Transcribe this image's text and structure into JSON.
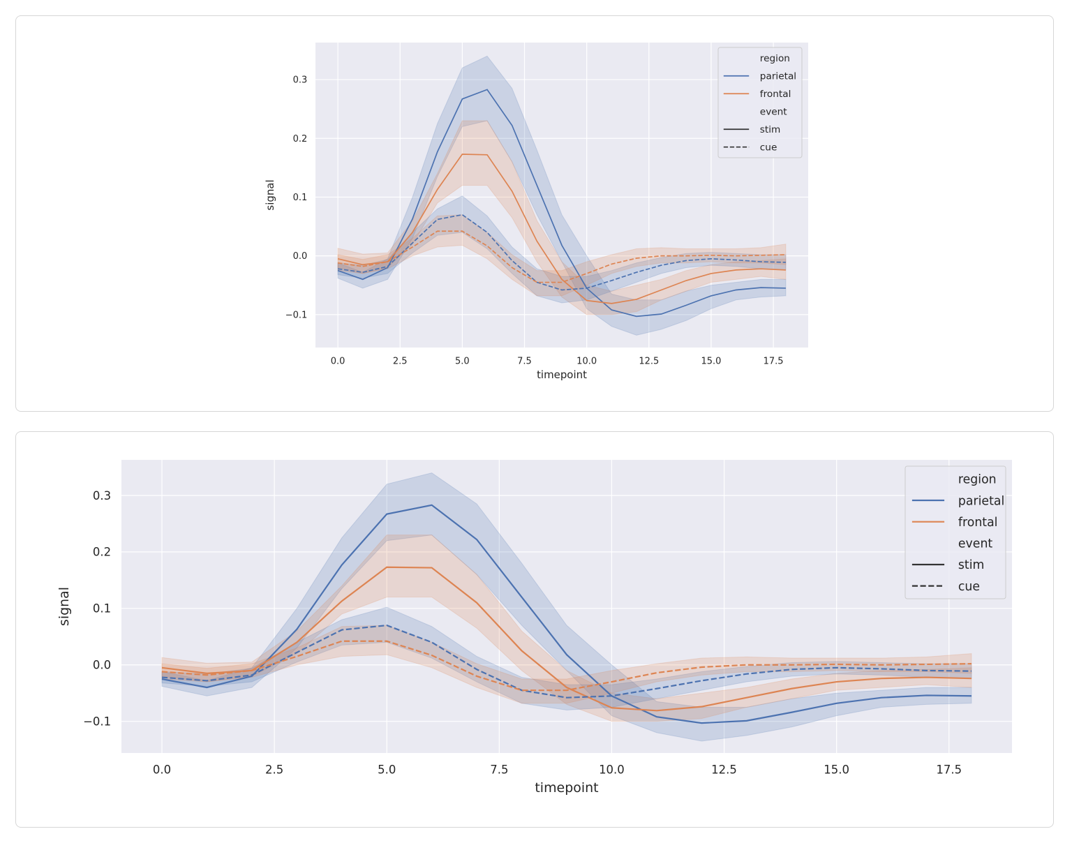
{
  "chart_data": [
    {
      "type": "line",
      "xlabel": "timepoint",
      "ylabel": "signal",
      "x": [
        0,
        1,
        2,
        3,
        4,
        5,
        6,
        7,
        8,
        9,
        10,
        11,
        12,
        13,
        14,
        15,
        16,
        17,
        18
      ],
      "xlim": [
        -0.9,
        18.9
      ],
      "ylim": [
        -0.156,
        0.363
      ],
      "xticks": [
        "0.0",
        "2.5",
        "5.0",
        "7.5",
        "10.0",
        "12.5",
        "15.0",
        "17.5"
      ],
      "yticks": [
        "−0.1",
        "0.0",
        "0.1",
        "0.2",
        "0.3"
      ],
      "grid": true,
      "legend_placement": "upper right",
      "legend": {
        "title_hue": "region",
        "hue": [
          "parietal",
          "frontal"
        ],
        "title_style": "event",
        "style": [
          "stim",
          "cue"
        ]
      },
      "colors": {
        "parietal": "#4c72b0",
        "frontal": "#dd8452",
        "background": "#eaeaf2"
      },
      "series": [
        {
          "region": "parietal",
          "event": "stim",
          "values": [
            -0.025,
            -0.04,
            -0.02,
            0.063,
            0.177,
            0.267,
            0.283,
            0.222,
            0.12,
            0.018,
            -0.055,
            -0.092,
            -0.103,
            -0.099,
            -0.084,
            -0.068,
            -0.058,
            -0.054,
            -0.055
          ],
          "ci_low": [
            -0.038,
            -0.055,
            -0.04,
            0.03,
            0.135,
            0.22,
            0.23,
            0.16,
            0.07,
            -0.01,
            -0.09,
            -0.12,
            -0.135,
            -0.125,
            -0.11,
            -0.09,
            -0.075,
            -0.07,
            -0.068
          ],
          "ci_high": [
            -0.012,
            -0.028,
            -0.005,
            0.1,
            0.225,
            0.32,
            0.34,
            0.285,
            0.18,
            0.07,
            0.0,
            -0.065,
            -0.075,
            -0.075,
            -0.06,
            -0.05,
            -0.045,
            -0.04,
            -0.04
          ]
        },
        {
          "region": "frontal",
          "event": "stim",
          "values": [
            -0.005,
            -0.015,
            -0.01,
            0.04,
            0.113,
            0.173,
            0.172,
            0.11,
            0.025,
            -0.04,
            -0.076,
            -0.081,
            -0.074,
            -0.058,
            -0.042,
            -0.03,
            -0.024,
            -0.022,
            -0.024
          ],
          "ci_low": [
            -0.02,
            -0.03,
            -0.02,
            0.02,
            0.09,
            0.12,
            0.12,
            0.065,
            -0.01,
            -0.07,
            -0.1,
            -0.1,
            -0.095,
            -0.075,
            -0.06,
            -0.045,
            -0.04,
            -0.035,
            -0.04
          ],
          "ci_high": [
            0.013,
            0.003,
            0.005,
            0.06,
            0.14,
            0.23,
            0.23,
            0.16,
            0.06,
            -0.01,
            -0.05,
            -0.06,
            -0.05,
            -0.04,
            -0.025,
            -0.015,
            -0.01,
            -0.008,
            -0.005
          ]
        },
        {
          "region": "parietal",
          "event": "cue",
          "values": [
            -0.022,
            -0.028,
            -0.018,
            0.022,
            0.062,
            0.07,
            0.04,
            -0.008,
            -0.045,
            -0.058,
            -0.055,
            -0.042,
            -0.028,
            -0.016,
            -0.008,
            -0.005,
            -0.007,
            -0.01,
            -0.011
          ],
          "ci_low": [
            -0.032,
            -0.038,
            -0.03,
            0.005,
            0.035,
            0.04,
            0.012,
            -0.03,
            -0.068,
            -0.08,
            -0.075,
            -0.06,
            -0.045,
            -0.03,
            -0.02,
            -0.016,
            -0.018,
            -0.022,
            -0.024
          ],
          "ci_high": [
            -0.012,
            -0.016,
            -0.006,
            0.04,
            0.08,
            0.102,
            0.068,
            0.015,
            -0.022,
            -0.035,
            -0.035,
            -0.025,
            -0.012,
            -0.003,
            0.004,
            0.006,
            0.004,
            0.002,
            0.002
          ]
        },
        {
          "region": "frontal",
          "event": "cue",
          "values": [
            -0.012,
            -0.018,
            -0.01,
            0.015,
            0.042,
            0.042,
            0.017,
            -0.02,
            -0.045,
            -0.045,
            -0.03,
            -0.014,
            -0.004,
            0.0,
            0.0,
            0.001,
            0.0,
            0.001,
            0.002
          ],
          "ci_low": [
            -0.025,
            -0.03,
            -0.022,
            0.0,
            0.015,
            0.018,
            -0.005,
            -0.04,
            -0.068,
            -0.068,
            -0.05,
            -0.03,
            -0.018,
            -0.012,
            -0.012,
            -0.01,
            -0.012,
            -0.012,
            -0.015
          ],
          "ci_high": [
            0.002,
            -0.006,
            0.002,
            0.03,
            0.068,
            0.07,
            0.04,
            0.002,
            -0.025,
            -0.025,
            -0.01,
            0.002,
            0.012,
            0.014,
            0.012,
            0.012,
            0.012,
            0.014,
            0.02
          ]
        }
      ]
    }
  ]
}
